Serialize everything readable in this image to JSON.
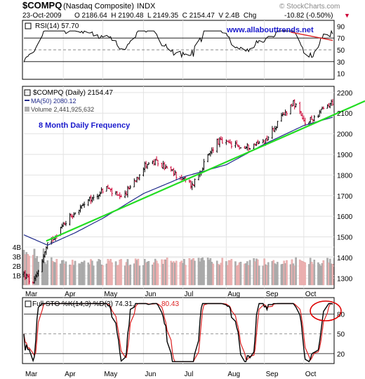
{
  "header": {
    "symbol": "$COMPQ",
    "name": "(Nasdaq Composite)",
    "exchange": "INDX",
    "watermark": "© StockCharts.com",
    "date": "23-Oct-2009",
    "ohlc_text": "O 2186.64  H 2190.48  L 2149.35  C 2154.47  V 2.4B  Chg",
    "change": "-10.82 (-0.50%)",
    "down_arrow": "▼"
  },
  "colors": {
    "price_up": "#000000",
    "price_down": "#cc0033",
    "ma_line": "#1f2a8a",
    "trend_line": "#22dd22",
    "rsi_trend": "#dd2222",
    "volume_up": "#b0b0b0",
    "volume_down": "#f0b8b8",
    "annotation_blue": "#1a1acc",
    "sto_k": "#000000",
    "sto_d": "#dd2222",
    "circle": "#dd0000"
  },
  "rsi_panel": {
    "legend": "RSI(14) 57.70",
    "url": "www.allabouttrends.net",
    "ticks": [
      "90",
      "70",
      "50",
      "30",
      "10"
    ]
  },
  "price_panel": {
    "legend_price": "$COMPQ (Daily) 2154.47",
    "legend_ma": "MA(50) 2080.12",
    "legend_volume": "Volume 2,441,925,632",
    "annotation": "8 Month Daily Frequency",
    "price_ticks": [
      "2200",
      "2100",
      "2000",
      "1900",
      "1800",
      "1700",
      "1600",
      "1500",
      "1400",
      "1300"
    ],
    "volume_ticks": [
      "4B",
      "3B",
      "2B",
      "1B"
    ],
    "months": [
      "Mar",
      "Apr",
      "May",
      "Jun",
      "Jul",
      "Aug",
      "Sep",
      "Oct"
    ]
  },
  "sto_panel": {
    "legend": "Full STO %K(14,3) %D(3) 74.31,",
    "legend_d": "80.43",
    "ticks": [
      "80",
      "50",
      "20"
    ],
    "months": [
      "Mar",
      "Apr",
      "May",
      "Jun",
      "Jul",
      "Aug",
      "Sep",
      "Oct"
    ]
  },
  "chart_data": {
    "type": "line",
    "title": "$COMPQ (Nasdaq Composite) INDX",
    "ylim": [
      1250,
      2230
    ],
    "price_key_points": [
      {
        "date": "2009-03-02",
        "close": 1320
      },
      {
        "date": "2009-03-09",
        "close": 1268
      },
      {
        "date": "2009-03-20",
        "close": 1460
      },
      {
        "date": "2009-04-06",
        "close": 1600
      },
      {
        "date": "2009-05-04",
        "close": 1740
      },
      {
        "date": "2009-05-15",
        "close": 1680
      },
      {
        "date": "2009-06-03",
        "close": 1855
      },
      {
        "date": "2009-06-12",
        "close": 1860
      },
      {
        "date": "2009-07-08",
        "close": 1750
      },
      {
        "date": "2009-07-27",
        "close": 1965
      },
      {
        "date": "2009-08-17",
        "close": 1930
      },
      {
        "date": "2009-09-02",
        "close": 1970
      },
      {
        "date": "2009-09-23",
        "close": 2155
      },
      {
        "date": "2009-10-02",
        "close": 2045
      },
      {
        "date": "2009-10-23",
        "close": 2154.47
      }
    ],
    "ma50_key_points": [
      {
        "date": "2009-03-02",
        "value": 1510
      },
      {
        "date": "2009-03-20",
        "value": 1460
      },
      {
        "date": "2009-04-10",
        "value": 1520
      },
      {
        "date": "2009-05-01",
        "value": 1590
      },
      {
        "date": "2009-06-01",
        "value": 1710
      },
      {
        "date": "2009-07-01",
        "value": 1790
      },
      {
        "date": "2009-08-03",
        "value": 1850
      },
      {
        "date": "2009-09-01",
        "value": 1950
      },
      {
        "date": "2009-10-01",
        "value": 2040
      },
      {
        "date": "2009-10-23",
        "value": 2080.12
      }
    ],
    "trendline": [
      {
        "date": "2009-03-19",
        "value": 1480
      },
      {
        "date": "2009-10-23",
        "value": 2090
      }
    ],
    "rsi_last": 57.7,
    "sto_k_last": 74.31,
    "sto_d_last": 80.43
  }
}
